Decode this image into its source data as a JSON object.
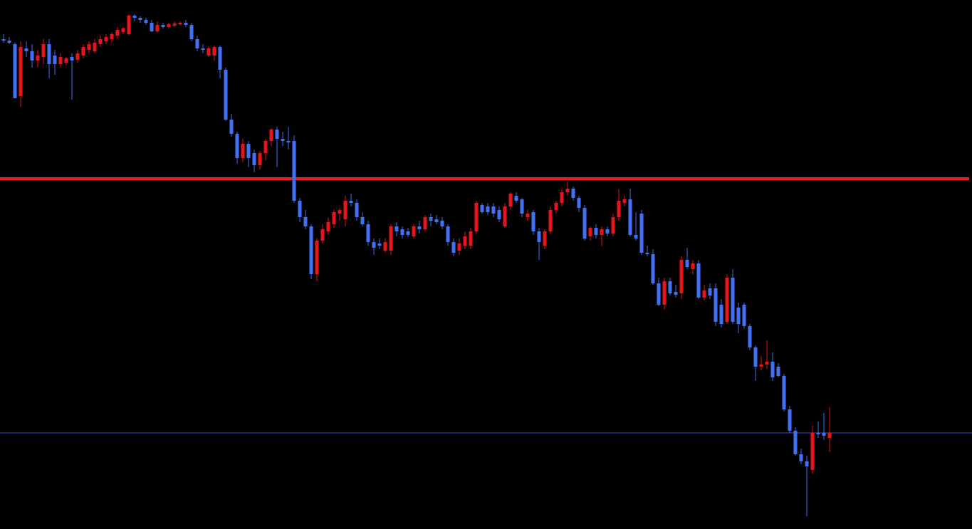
{
  "chart_data": {
    "type": "candlestick",
    "ylim": [
      257,
      1000
    ],
    "up_color": "#e8141c",
    "down_color": "#3f6ff2",
    "background": "#000000",
    "hlines": [
      {
        "value": 749,
        "color": "#e8202a"
      },
      {
        "value": 392,
        "color": "#3a50c8"
      }
    ],
    "open": [
      945,
      943,
      938,
      865,
      932,
      928,
      915,
      920,
      938,
      922,
      910,
      912,
      920,
      916,
      922,
      930,
      928,
      938,
      942,
      945,
      950,
      955,
      952,
      978,
      975,
      972,
      968,
      956,
      965,
      962,
      964,
      966,
      968,
      965,
      945,
      932,
      922,
      922,
      934,
      902,
      832,
      812,
      778,
      798,
      785,
      768,
      785,
      802,
      818,
      805,
      802,
      802,
      718,
      695,
      682,
      615,
      662,
      675,
      685,
      700,
      692,
      718,
      715,
      695,
      685,
      660,
      658,
      648,
      648,
      682,
      678,
      675,
      668,
      682,
      678,
      695,
      692,
      690,
      682,
      660,
      648,
      655,
      655,
      675,
      712,
      710,
      710,
      705,
      682,
      710,
      725,
      720,
      695,
      702,
      675,
      655,
      675,
      705,
      715,
      730,
      735,
      722,
      708,
      668,
      680,
      670,
      678,
      672,
      695,
      715,
      720,
      670,
      700,
      645,
      643,
      602,
      572,
      605,
      590,
      588,
      635,
      622,
      630,
      582,
      595,
      595,
      572,
      548,
      610,
      568,
      572,
      542,
      512,
      485,
      488,
      492,
      485,
      472,
      425,
      395,
      362,
      352,
      340,
      392,
      392,
      385
    ],
    "high": [
      952,
      948,
      940,
      942,
      942,
      938,
      930,
      945,
      945,
      930,
      925,
      920,
      925,
      930,
      938,
      942,
      945,
      950,
      952,
      955,
      962,
      962,
      980,
      980,
      977,
      975,
      972,
      970,
      968,
      968,
      970,
      970,
      972,
      968,
      950,
      938,
      935,
      936,
      936,
      905,
      840,
      815,
      805,
      802,
      790,
      788,
      805,
      820,
      822,
      815,
      822,
      810,
      722,
      705,
      685,
      665,
      685,
      695,
      705,
      708,
      725,
      728,
      720,
      702,
      690,
      665,
      665,
      665,
      685,
      688,
      682,
      680,
      685,
      690,
      698,
      700,
      698,
      695,
      685,
      665,
      665,
      675,
      680,
      718,
      715,
      715,
      715,
      710,
      715,
      730,
      730,
      722,
      705,
      705,
      680,
      678,
      710,
      718,
      735,
      745,
      738,
      725,
      712,
      682,
      685,
      682,
      682,
      700,
      735,
      725,
      735,
      702,
      705,
      655,
      650,
      610,
      610,
      610,
      600,
      640,
      652,
      635,
      635,
      600,
      602,
      602,
      580,
      615,
      622,
      575,
      575,
      545,
      515,
      500,
      522,
      505,
      490,
      475,
      430,
      400,
      370,
      360,
      402,
      408,
      420,
      428
    ],
    "low": [
      940,
      938,
      862,
      850,
      920,
      905,
      905,
      910,
      890,
      895,
      905,
      908,
      860,
      912,
      918,
      925,
      925,
      934,
      938,
      940,
      945,
      952,
      950,
      970,
      968,
      965,
      955,
      954,
      960,
      960,
      962,
      964,
      962,
      942,
      928,
      925,
      920,
      915,
      890,
      830,
      808,
      770,
      772,
      765,
      758,
      762,
      775,
      795,
      765,
      795,
      790,
      715,
      688,
      678,
      608,
      605,
      658,
      670,
      680,
      690,
      682,
      710,
      690,
      682,
      655,
      642,
      650,
      645,
      642,
      668,
      665,
      667,
      665,
      672,
      675,
      682,
      685,
      678,
      655,
      640,
      642,
      650,
      650,
      672,
      700,
      698,
      695,
      688,
      680,
      705,
      715,
      695,
      690,
      670,
      635,
      650,
      672,
      700,
      710,
      725,
      718,
      702,
      662,
      662,
      665,
      655,
      668,
      668,
      690,
      710,
      668,
      662,
      642,
      640,
      600,
      570,
      565,
      585,
      582,
      580,
      622,
      615,
      580,
      578,
      580,
      542,
      540,
      545,
      545,
      532,
      538,
      508,
      465,
      480,
      482,
      465,
      470,
      422,
      392,
      360,
      348,
      275,
      335,
      385,
      382,
      365
    ],
    "close": [
      943,
      940,
      862,
      934,
      928,
      915,
      922,
      938,
      910,
      910,
      920,
      918,
      915,
      925,
      934,
      938,
      940,
      945,
      948,
      952,
      958,
      960,
      978,
      975,
      972,
      968,
      956,
      965,
      962,
      966,
      967,
      968,
      965,
      945,
      932,
      930,
      932,
      934,
      902,
      832,
      812,
      778,
      798,
      778,
      768,
      785,
      802,
      818,
      805,
      802,
      800,
      718,
      695,
      682,
      615,
      662,
      678,
      688,
      702,
      705,
      718,
      715,
      695,
      685,
      660,
      652,
      655,
      660,
      682,
      675,
      670,
      670,
      682,
      678,
      695,
      690,
      688,
      682,
      660,
      645,
      658,
      668,
      675,
      715,
      702,
      702,
      700,
      692,
      710,
      728,
      718,
      700,
      700,
      675,
      660,
      675,
      705,
      715,
      730,
      735,
      722,
      708,
      665,
      680,
      670,
      678,
      672,
      695,
      718,
      720,
      670,
      665,
      645,
      643,
      602,
      572,
      605,
      588,
      586,
      635,
      625,
      630,
      582,
      592,
      585,
      548,
      545,
      610,
      548,
      545,
      542,
      512,
      485,
      488,
      492,
      470,
      472,
      425,
      395,
      362,
      352,
      345,
      392,
      390,
      388,
      392
    ]
  }
}
